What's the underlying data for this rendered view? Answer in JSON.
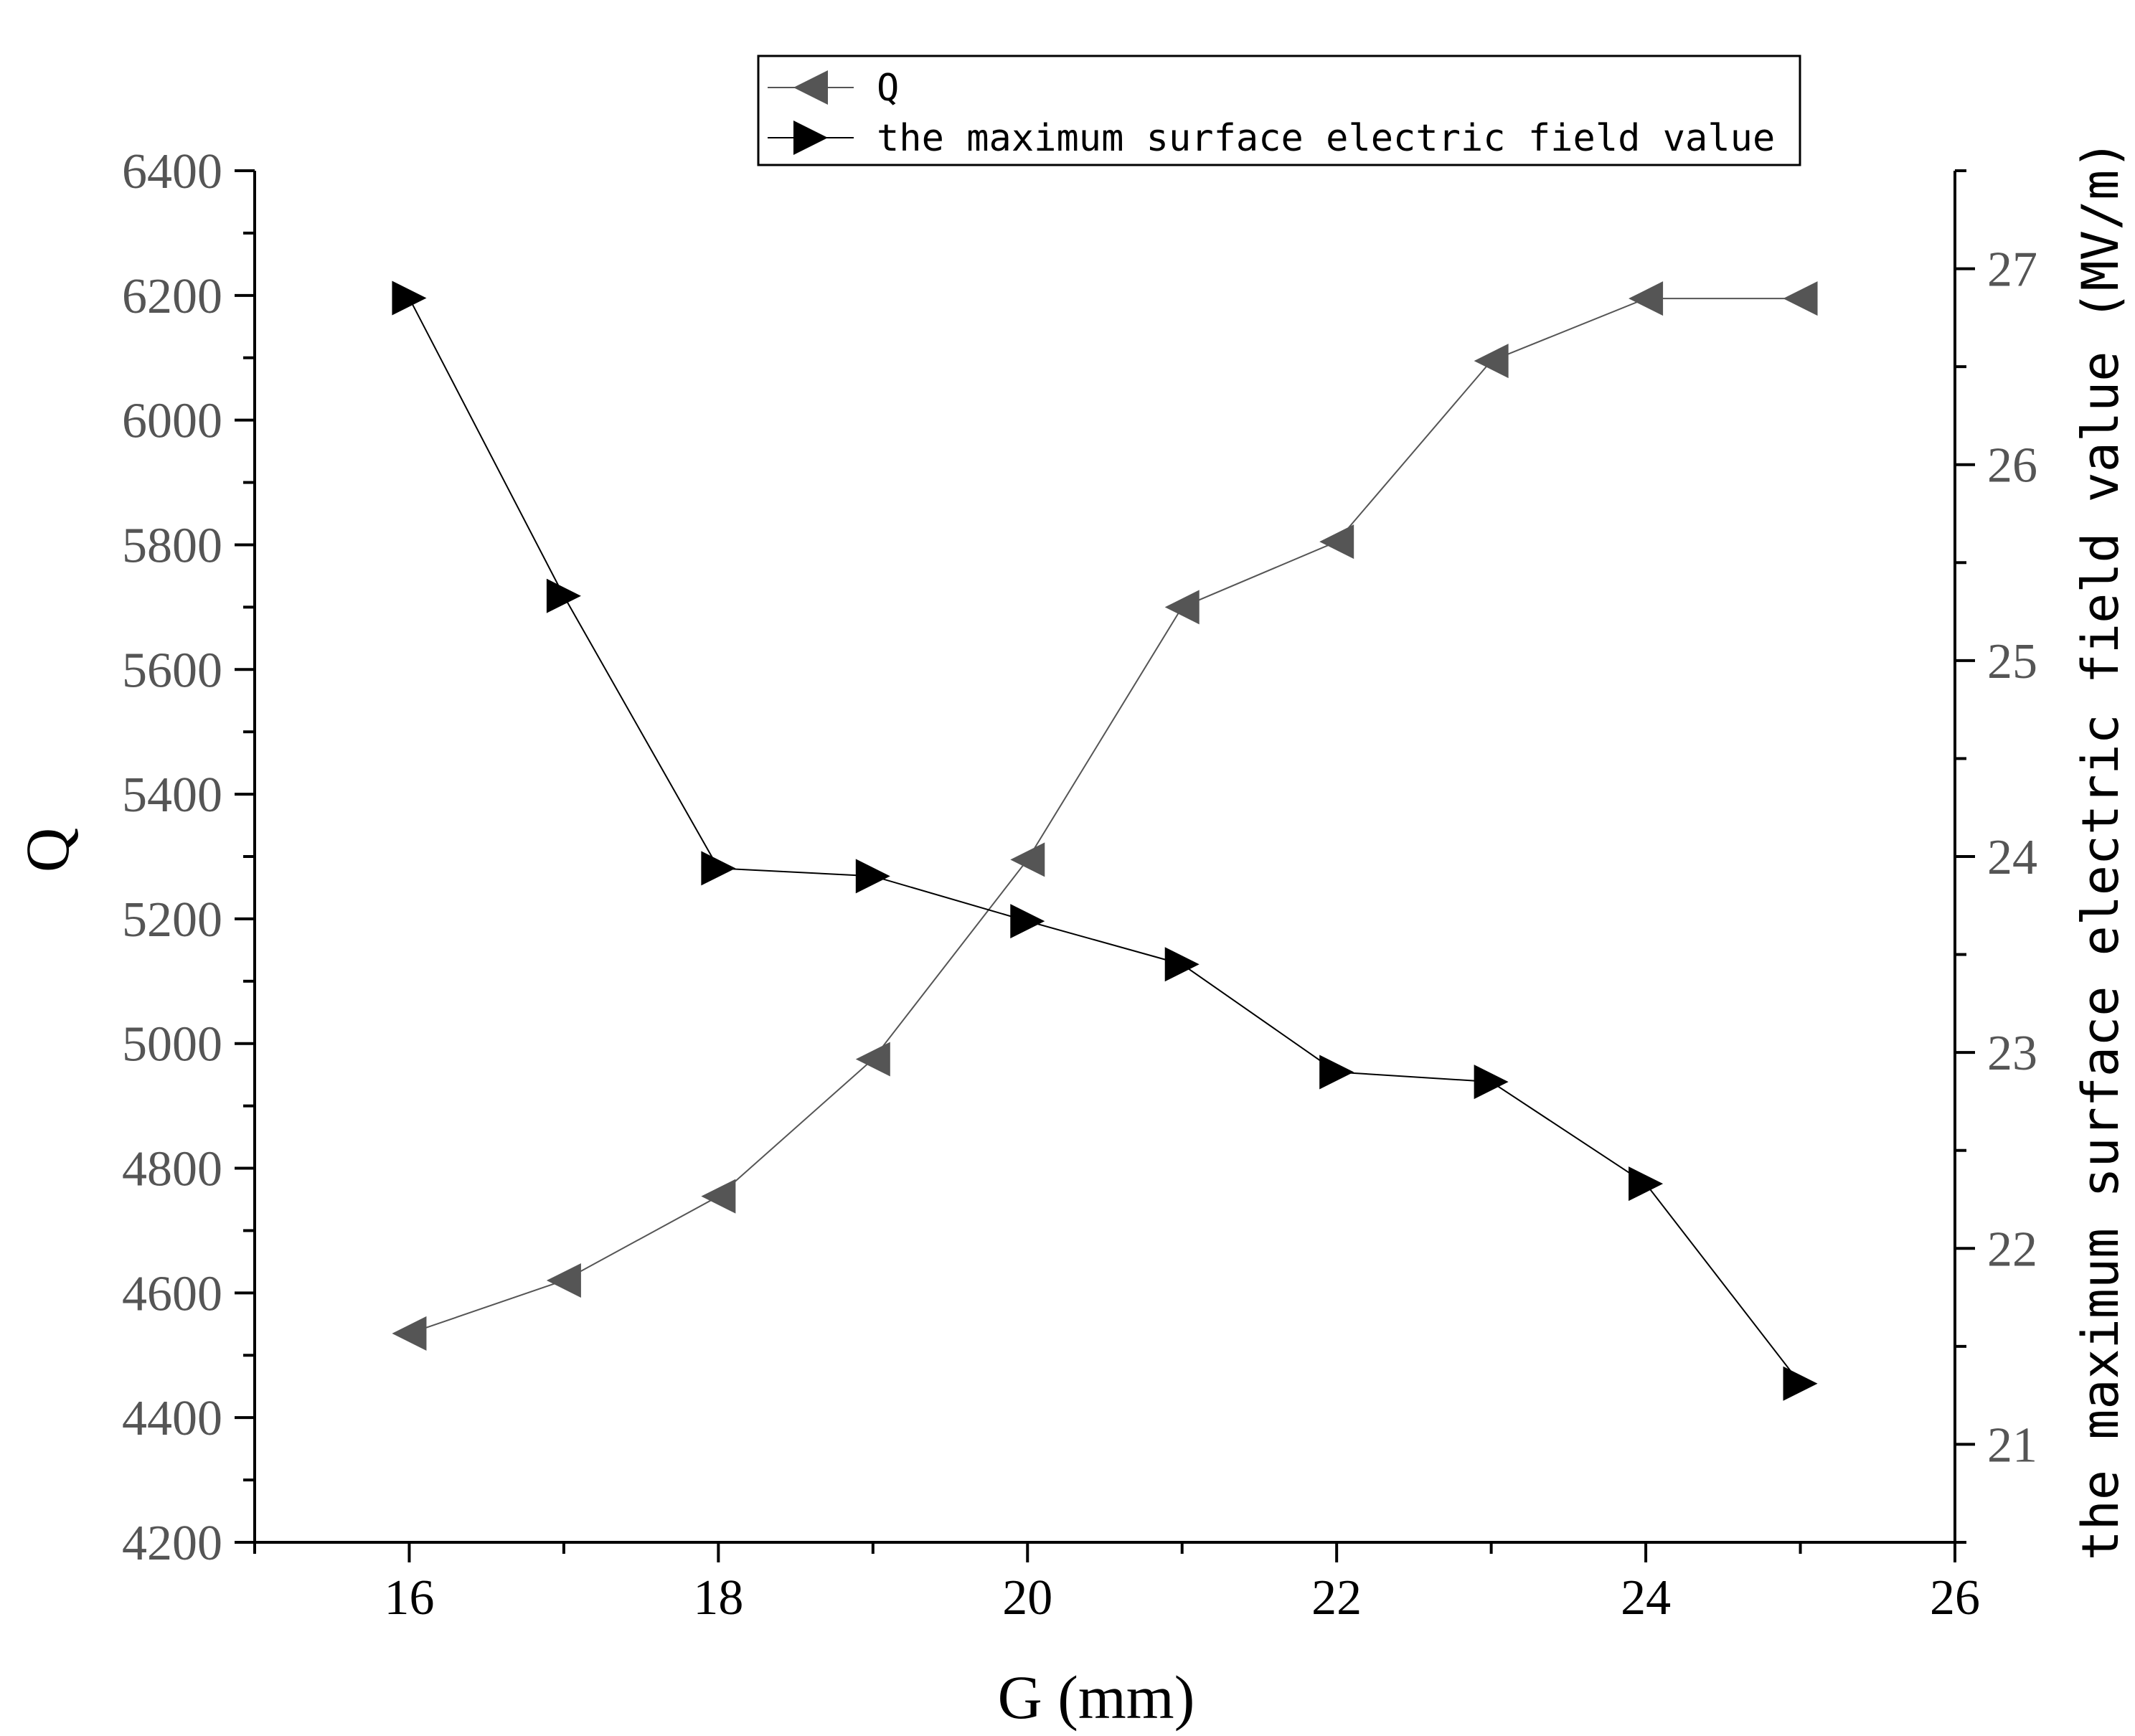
{
  "chart_data": {
    "type": "line",
    "xlabel": "G (mm)",
    "ylabel": "Q",
    "y2label": "the maximum surface electric field value (MV/m)",
    "xlim": [
      15,
      26
    ],
    "ylim": [
      4200,
      6400
    ],
    "y2lim": [
      20.5,
      27.5
    ],
    "x_ticks": [
      16,
      18,
      20,
      22,
      24,
      26
    ],
    "y_ticks": [
      4200,
      4400,
      4600,
      4800,
      5000,
      5200,
      5400,
      5600,
      5800,
      6000,
      6200,
      6400
    ],
    "y2_ticks": [
      21,
      22,
      23,
      24,
      25,
      26,
      27
    ],
    "x": [
      16,
      17,
      18,
      19,
      20,
      21,
      22,
      23,
      24,
      25
    ],
    "series": [
      {
        "name": "Q",
        "axis": "left",
        "marker": "left-triangle",
        "color": "#555555",
        "values": [
          4535,
          4620,
          4755,
          4975,
          5295,
          5700,
          5805,
          6095,
          6195,
          6195
        ]
      },
      {
        "name": "the maximum surface electric field value",
        "axis": "right",
        "marker": "right-triangle",
        "color": "#000000",
        "values": [
          26.85,
          25.33,
          23.94,
          23.9,
          23.67,
          23.45,
          22.9,
          22.85,
          22.33,
          21.31
        ]
      }
    ],
    "legend": {
      "position": "top-center"
    },
    "grid": false
  }
}
